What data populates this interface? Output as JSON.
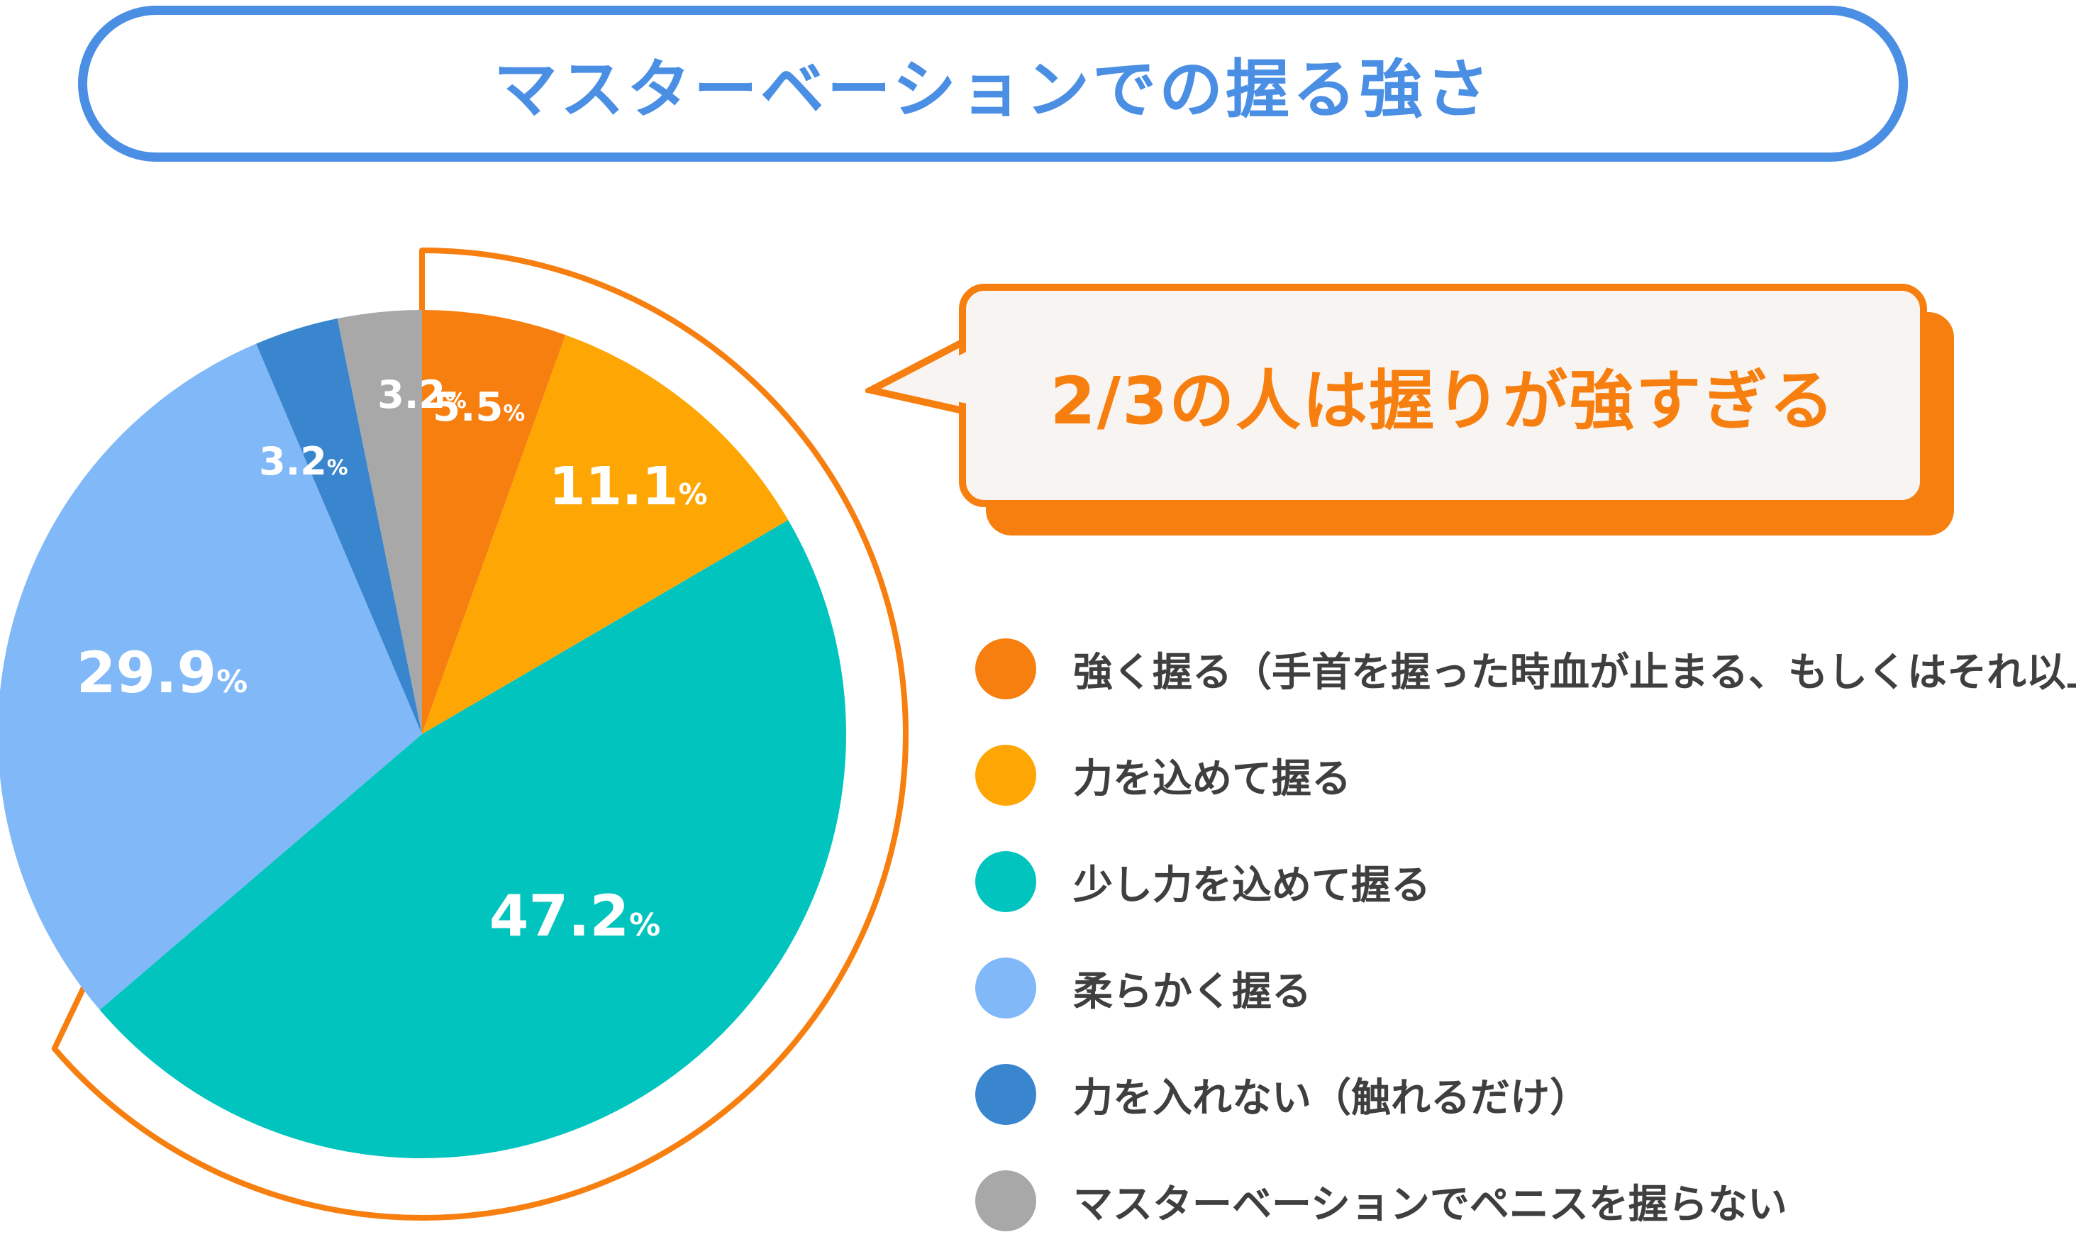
{
  "title": "マスターベーションでの握る強さ",
  "callout": {
    "text": "2/3の人は握りが強すぎる"
  },
  "chart_data": {
    "type": "pie",
    "title": "マスターベーションでの握る強さ",
    "unit": "%",
    "start": "12 o'clock",
    "direction": "clockwise",
    "slices": [
      {
        "label": "強く握る（手首を握った時血が止まる、もしくはそれ以上）",
        "value": 5.5,
        "color": "#f77f0f"
      },
      {
        "label": "力を込めて握る",
        "value": 11.1,
        "color": "#fea704"
      },
      {
        "label": "少し力を込めて握る",
        "value": 47.2,
        "color": "#02c4be"
      },
      {
        "label": "柔らかく握る",
        "value": 29.9,
        "color": "#80b8f8"
      },
      {
        "label": "力を入れない（触れるだけ）",
        "value": 3.2,
        "color": "#3a86ce"
      },
      {
        "label": "マスターベーションでペニスを握らない",
        "value": 3.2,
        "color": "#a8a8a8"
      }
    ],
    "highlight": {
      "slices": [
        0,
        1,
        2
      ],
      "color": "#f77f0f"
    },
    "legend_position": "right"
  }
}
